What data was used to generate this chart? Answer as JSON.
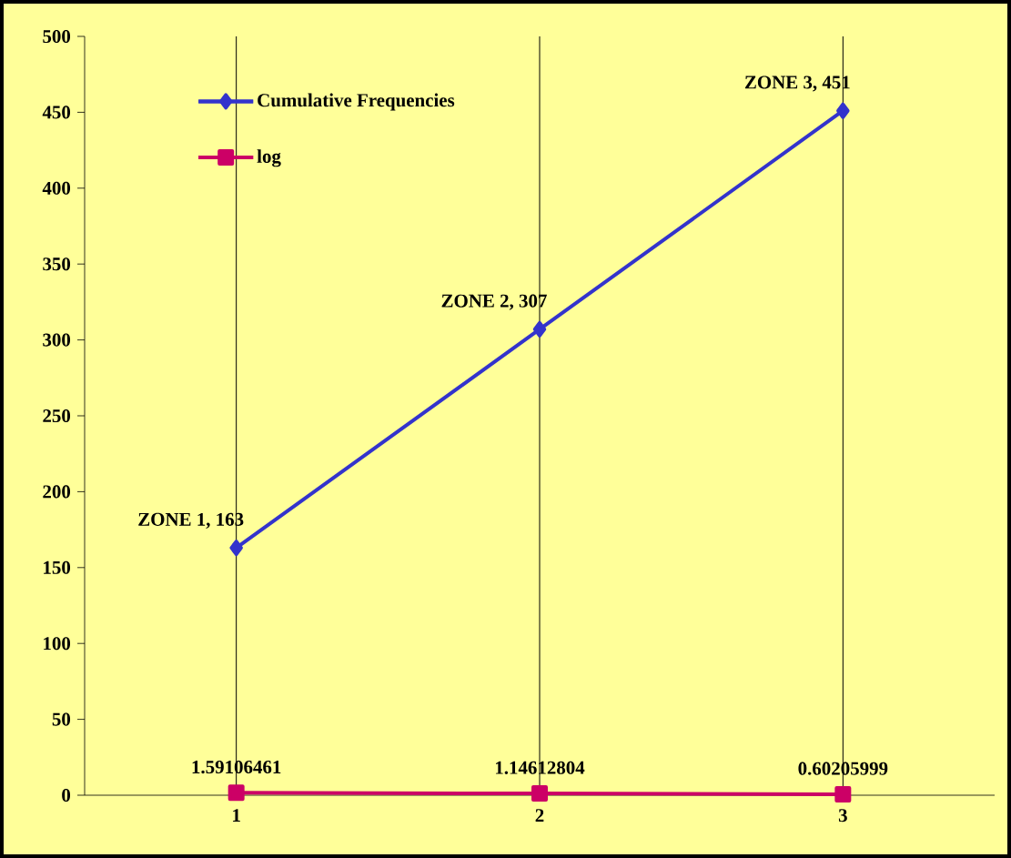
{
  "chart_data": {
    "type": "line",
    "categories": [
      "1",
      "2",
      "3"
    ],
    "ylim": [
      0,
      500
    ],
    "yticks": [
      0,
      50,
      100,
      150,
      200,
      250,
      300,
      350,
      400,
      450,
      500
    ],
    "grid": "x",
    "legend": "top left",
    "line_style": "solid",
    "series": [
      {
        "name": "Cumulative Frequencies",
        "color": "#3333cc",
        "marker": "diamond",
        "values": [
          163,
          307,
          451
        ],
        "value_labels": [
          "ZONE 1, 163",
          "ZONE 2, 307",
          "ZONE 3, 451"
        ]
      },
      {
        "name": "log",
        "color": "#cc0066",
        "marker": "square",
        "values": [
          1.59106461,
          1.14612804,
          0.60205999
        ],
        "value_labels": [
          "1.59106461",
          "1.14612804",
          "0.60205999"
        ]
      }
    ]
  }
}
